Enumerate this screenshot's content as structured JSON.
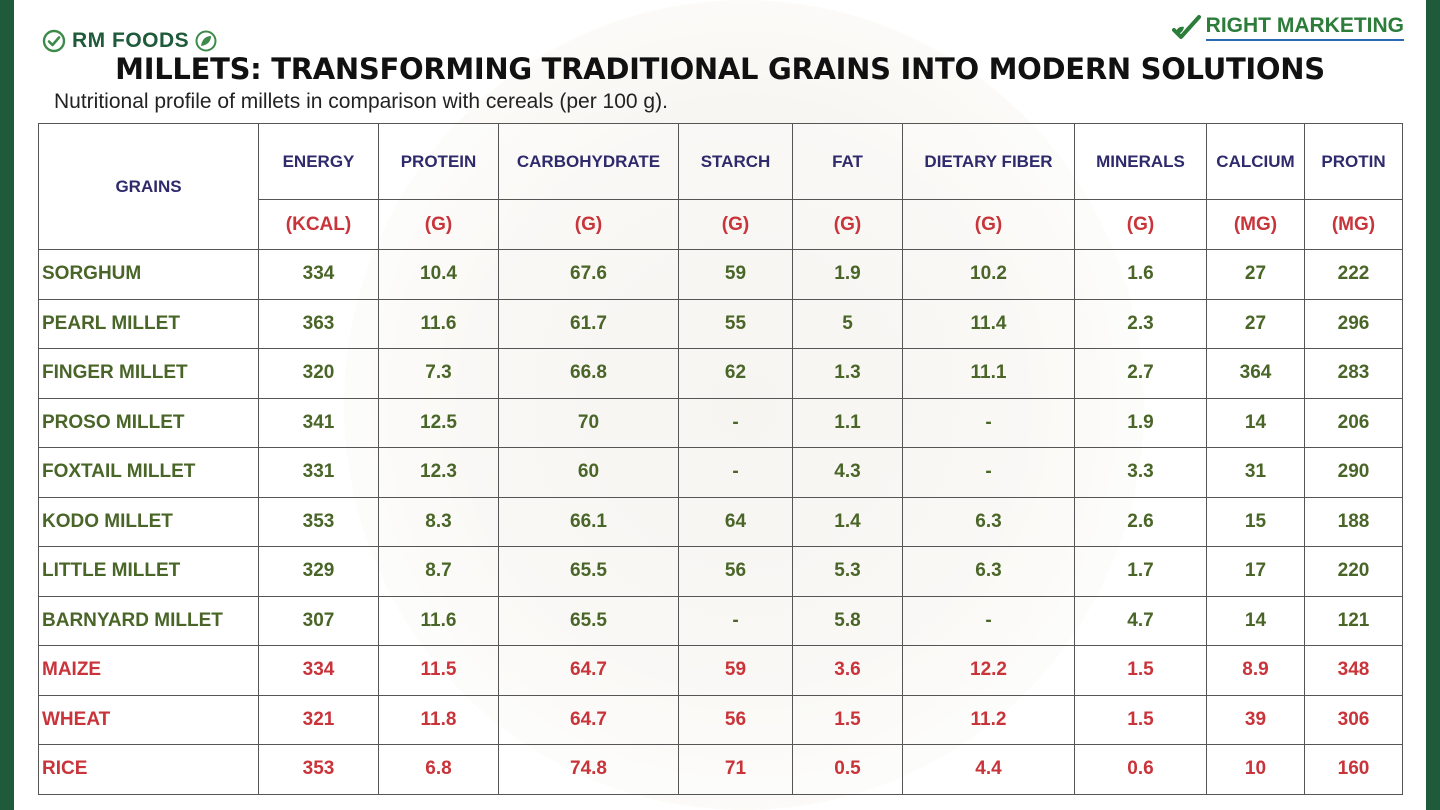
{
  "brand_left": {
    "name": "RM FOODS",
    "check_icon": "check-circle-icon",
    "leaf_icon": "leaf-icon"
  },
  "brand_right": {
    "name": "RIGHT MARKETING",
    "icon": "check-leaf-icon"
  },
  "title": "MILLETS: TRANSFORMING TRADITIONAL GRAINS INTO MODERN SOLUTIONS",
  "subtitle": "Nutritional profile of millets in comparison with cereals (per 100 g).",
  "colors": {
    "millet_text": "#4a6528",
    "cereal_text": "#c8343a",
    "header_text": "#2e2a6b",
    "frame": "#1f5a3a"
  },
  "table": {
    "grain_header": "GRAINS",
    "columns": [
      {
        "name": "ENERGY",
        "unit": "(KCAL)"
      },
      {
        "name": "PROTEIN",
        "unit": "(G)"
      },
      {
        "name": "CARBOHYDRATE",
        "unit": "(G)"
      },
      {
        "name": "STARCH",
        "unit": "(G)"
      },
      {
        "name": "FAT",
        "unit": "(G)"
      },
      {
        "name": "DIETARY FIBER",
        "unit": "(G)"
      },
      {
        "name": "MINERALS",
        "unit": "(G)"
      },
      {
        "name": "CALCIUM",
        "unit": "(MG)"
      },
      {
        "name": "PROTIN",
        "unit": "(MG)"
      }
    ],
    "rows": [
      {
        "grain": "SORGHUM",
        "type": "millet",
        "values": [
          "334",
          "10.4",
          "67.6",
          "59",
          "1.9",
          "10.2",
          "1.6",
          "27",
          "222"
        ]
      },
      {
        "grain": "PEARL MILLET",
        "type": "millet",
        "values": [
          "363",
          "11.6",
          "61.7",
          "55",
          "5",
          "11.4",
          "2.3",
          "27",
          "296"
        ]
      },
      {
        "grain": "FINGER MILLET",
        "type": "millet",
        "values": [
          "320",
          "7.3",
          "66.8",
          "62",
          "1.3",
          "11.1",
          "2.7",
          "364",
          "283"
        ]
      },
      {
        "grain": "PROSO MILLET",
        "type": "millet",
        "values": [
          "341",
          "12.5",
          "70",
          "-",
          "1.1",
          "-",
          "1.9",
          "14",
          "206"
        ]
      },
      {
        "grain": "FOXTAIL MILLET",
        "type": "millet",
        "values": [
          "331",
          "12.3",
          "60",
          "-",
          "4.3",
          "-",
          "3.3",
          "31",
          "290"
        ]
      },
      {
        "grain": "KODO MILLET",
        "type": "millet",
        "values": [
          "353",
          "8.3",
          "66.1",
          "64",
          "1.4",
          "6.3",
          "2.6",
          "15",
          "188"
        ]
      },
      {
        "grain": "LITTLE MILLET",
        "type": "millet",
        "values": [
          "329",
          "8.7",
          "65.5",
          "56",
          "5.3",
          "6.3",
          "1.7",
          "17",
          "220"
        ]
      },
      {
        "grain": "BARNYARD MILLET",
        "type": "millet",
        "values": [
          "307",
          "11.6",
          "65.5",
          "-",
          "5.8",
          "-",
          "4.7",
          "14",
          "121"
        ]
      },
      {
        "grain": "MAIZE",
        "type": "cereal",
        "values": [
          "334",
          "11.5",
          "64.7",
          "59",
          "3.6",
          "12.2",
          "1.5",
          "8.9",
          "348"
        ]
      },
      {
        "grain": "WHEAT",
        "type": "cereal",
        "values": [
          "321",
          "11.8",
          "64.7",
          "56",
          "1.5",
          "11.2",
          "1.5",
          "39",
          "306"
        ]
      },
      {
        "grain": "RICE",
        "type": "cereal",
        "values": [
          "353",
          "6.8",
          "74.8",
          "71",
          "0.5",
          "4.4",
          "0.6",
          "10",
          "160"
        ]
      }
    ]
  }
}
